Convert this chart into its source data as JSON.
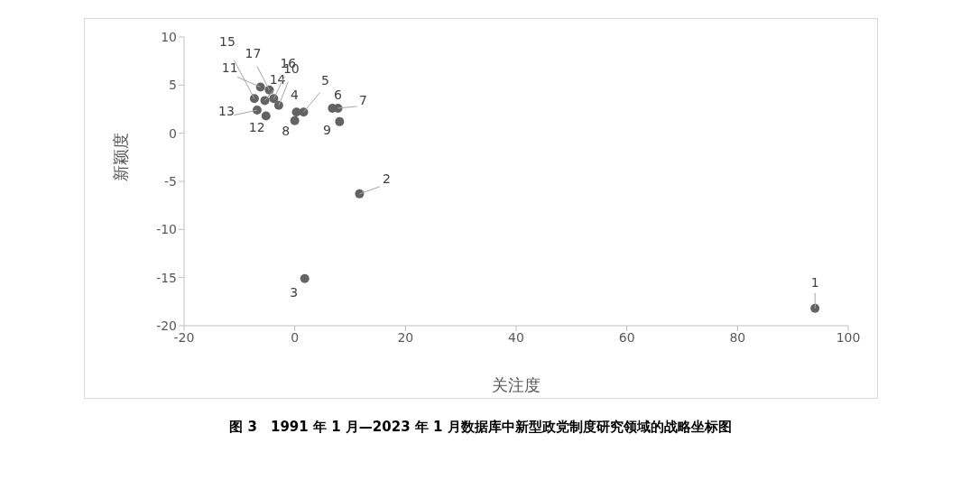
{
  "chart_data": {
    "type": "scatter",
    "xlabel": "关注度",
    "ylabel": "新颖度",
    "xlim": [
      -20,
      100
    ],
    "xticks": [
      -20,
      0,
      20,
      40,
      60,
      80,
      100
    ],
    "ylim": [
      -20,
      10
    ],
    "yticks": [
      -20,
      -15,
      -10,
      -5,
      0,
      5,
      10
    ],
    "grid": false,
    "legend": false,
    "marker": "circle",
    "series": [
      {
        "color": "#636363",
        "x": [
          94,
          11.7,
          1.8,
          0.3,
          1.6,
          6.8,
          7.8,
          0,
          8.1,
          -2.9,
          -6.2,
          -5.2,
          -6.8,
          -5.4,
          -7.3,
          -3.8,
          -4.6
        ],
        "values": [
          -18.2,
          -6.3,
          -15.1,
          2.2,
          2.2,
          2.6,
          2.6,
          1.3,
          1.2,
          2.9,
          4.8,
          1.8,
          2.4,
          3.4,
          3.6,
          3.6,
          4.5
        ]
      }
    ],
    "annotations": [
      {
        "text": "1",
        "x": 94,
        "y": -18.2
      },
      {
        "text": "2",
        "x": 11.7,
        "y": -6.3
      },
      {
        "text": "3",
        "x": 1.8,
        "y": -15.1
      },
      {
        "text": "4",
        "x": 0.3,
        "y": 2.2
      },
      {
        "text": "5",
        "x": 1.6,
        "y": 2.2
      },
      {
        "text": "6",
        "x": 6.8,
        "y": 2.6
      },
      {
        "text": "7",
        "x": 7.8,
        "y": 2.6
      },
      {
        "text": "8",
        "x": 0,
        "y": 1.3
      },
      {
        "text": "9",
        "x": 8.1,
        "y": 1.2
      },
      {
        "text": "10",
        "x": -2.9,
        "y": 2.9
      },
      {
        "text": "11",
        "x": -6.2,
        "y": 4.8
      },
      {
        "text": "12",
        "x": -5.2,
        "y": 1.8
      },
      {
        "text": "13",
        "x": -6.8,
        "y": 2.4
      },
      {
        "text": "14",
        "x": -5.4,
        "y": 3.4
      },
      {
        "text": "15",
        "x": -7.3,
        "y": 3.6
      },
      {
        "text": "16",
        "x": -3.8,
        "y": 3.6
      },
      {
        "text": "17",
        "x": -4.6,
        "y": 4.5
      },
      "图 3　1991 年 1 月—2023 年 1 月数据库中新型政党制度研究领域的战略坐标图"
    ]
  }
}
